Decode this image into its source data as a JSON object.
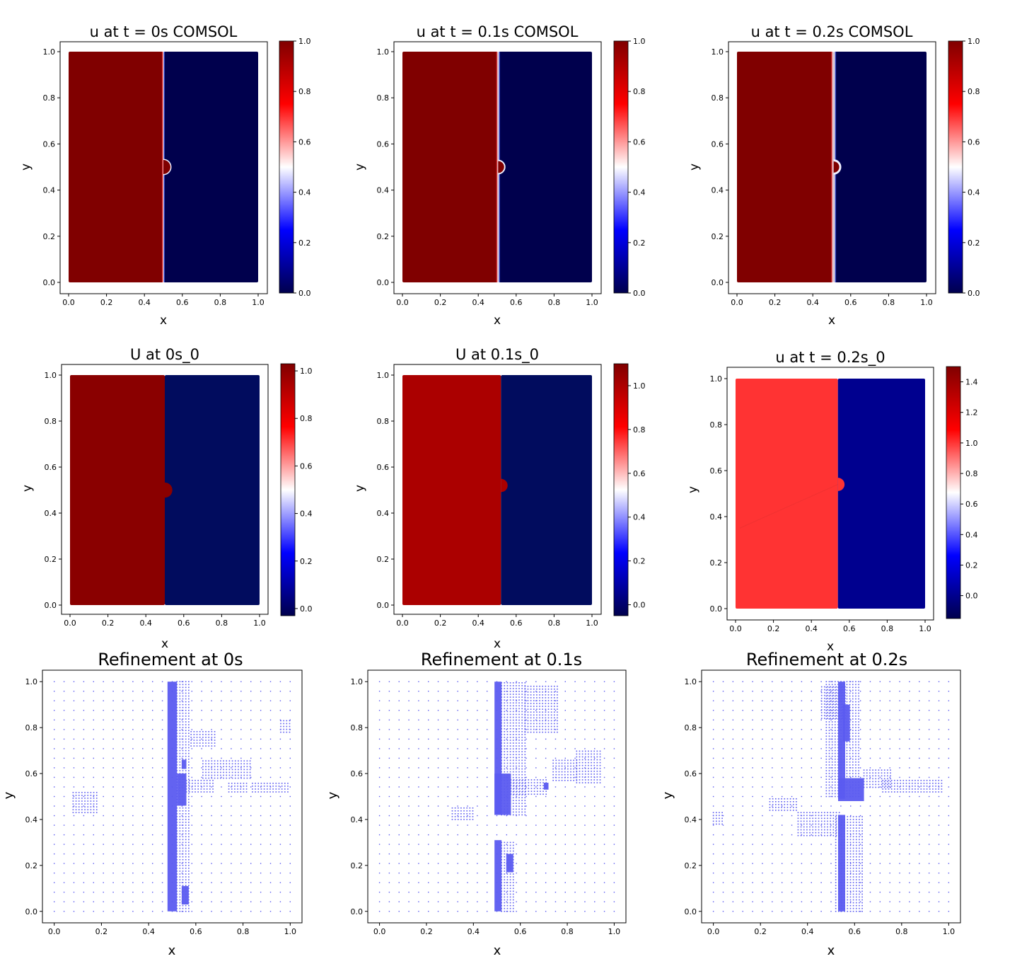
{
  "colors": {
    "cold": "#00004d",
    "hot": "#800000",
    "mid": "#ffffff",
    "nn_cold": "#010c5e",
    "nn_hot_1": "#8a0000",
    "nn_hot_2": "#ab0000",
    "nn_hot_3": "#ff3333",
    "nn_cold_3": "#00008f",
    "refine": "#5b5bf0"
  },
  "chart_data": [
    {
      "type": "heatmap",
      "title": "u at t = 0s COMSOL",
      "xlabel": "x",
      "ylabel": "y",
      "xlim": [
        0,
        1
      ],
      "ylim": [
        0,
        1
      ],
      "xticks": [
        "0.0",
        "0.2",
        "0.4",
        "0.6",
        "0.8",
        "1.0"
      ],
      "yticks": [
        "0.0",
        "0.2",
        "0.4",
        "0.6",
        "0.8",
        "1.0"
      ],
      "interface_x": 0.5,
      "bump_center_y": 0.5,
      "bump_radius": 0.04,
      "transition_width": 0.003,
      "left_value": 1.0,
      "right_value": 0.0,
      "colorbar": {
        "min": 0.0,
        "max": 1.0,
        "ticks": [
          "0.0",
          "0.2",
          "0.4",
          "0.6",
          "0.8",
          "1.0"
        ]
      }
    },
    {
      "type": "heatmap",
      "title": "u at t = 0.1s COMSOL",
      "xlabel": "x",
      "ylabel": "y",
      "xlim": [
        0,
        1
      ],
      "ylim": [
        0,
        1
      ],
      "xticks": [
        "0.0",
        "0.2",
        "0.4",
        "0.6",
        "0.8",
        "1.0"
      ],
      "yticks": [
        "0.0",
        "0.2",
        "0.4",
        "0.6",
        "0.8",
        "1.0"
      ],
      "interface_x": 0.505,
      "bump_center_y": 0.5,
      "bump_radius": 0.035,
      "transition_width": 0.012,
      "left_value": 1.0,
      "right_value": 0.0,
      "colorbar": {
        "min": 0.0,
        "max": 1.0,
        "ticks": [
          "0.0",
          "0.2",
          "0.4",
          "0.6",
          "0.8",
          "1.0"
        ]
      }
    },
    {
      "type": "heatmap",
      "title": "u at t = 0.2s COMSOL",
      "xlabel": "x",
      "ylabel": "y",
      "xlim": [
        0,
        1
      ],
      "ylim": [
        0,
        1
      ],
      "xticks": [
        "0.0",
        "0.2",
        "0.4",
        "0.6",
        "0.8",
        "1.0"
      ],
      "yticks": [
        "0.0",
        "0.2",
        "0.4",
        "0.6",
        "0.8",
        "1.0"
      ],
      "interface_x": 0.51,
      "bump_center_y": 0.5,
      "bump_radius": 0.035,
      "transition_width": 0.018,
      "left_value": 1.0,
      "right_value": 0.0,
      "colorbar": {
        "min": 0.0,
        "max": 1.0,
        "ticks": [
          "0.0",
          "0.2",
          "0.4",
          "0.6",
          "0.8",
          "1.0"
        ]
      }
    },
    {
      "type": "heatmap",
      "title": "U at 0s_0",
      "xlabel": "x",
      "ylabel": "y",
      "xlim": [
        0,
        1
      ],
      "ylim": [
        0,
        1
      ],
      "xticks": [
        "0.0",
        "0.2",
        "0.4",
        "0.6",
        "0.8",
        "1.0"
      ],
      "yticks": [
        "0.0",
        "0.2",
        "0.4",
        "0.6",
        "0.8",
        "1.0"
      ],
      "interface_x": 0.5,
      "bump_center_y": 0.5,
      "bump_radius": 0.04,
      "left_value": 1.0,
      "right_value": 0.0,
      "colorbar": {
        "min": -0.03,
        "max": 1.03,
        "ticks": [
          "0.0",
          "0.2",
          "0.4",
          "0.6",
          "0.8",
          "1.0"
        ]
      }
    },
    {
      "type": "heatmap",
      "title": "U at 0.1s_0",
      "xlabel": "x",
      "ylabel": "y",
      "xlim": [
        0,
        1
      ],
      "ylim": [
        0,
        1
      ],
      "xticks": [
        "0.0",
        "0.2",
        "0.4",
        "0.6",
        "0.8",
        "1.0"
      ],
      "yticks": [
        "0.0",
        "0.2",
        "0.4",
        "0.6",
        "0.8",
        "1.0"
      ],
      "interface_x": 0.52,
      "bump_center_y": 0.52,
      "bump_radius": 0.035,
      "left_value": 1.0,
      "right_value": 0.0,
      "colorbar": {
        "min": -0.05,
        "max": 1.1,
        "ticks": [
          "0.0",
          "0.2",
          "0.4",
          "0.6",
          "0.8",
          "1.0"
        ]
      }
    },
    {
      "type": "heatmap",
      "title": "u at t = 0.2s_0",
      "xlabel": "x",
      "ylabel": "y",
      "xlim": [
        0,
        1
      ],
      "ylim": [
        0,
        1
      ],
      "xticks": [
        "0.0",
        "0.2",
        "0.4",
        "0.6",
        "0.8",
        "1.0"
      ],
      "yticks": [
        "0.0",
        "0.2",
        "0.4",
        "0.6",
        "0.8",
        "1.0"
      ],
      "interface_x": 0.54,
      "bump_center_y": 0.54,
      "bump_radius": 0.035,
      "left_value": 1.0,
      "right_value": 0.0,
      "colorbar": {
        "min": -0.15,
        "max": 1.5,
        "ticks": [
          "0.0",
          "0.2",
          "0.4",
          "0.6",
          "0.8",
          "1.0",
          "1.2",
          "1.4"
        ]
      }
    },
    {
      "type": "scatter",
      "title": "Refinement at 0s",
      "xlabel": "x",
      "ylabel": "y",
      "xlim": [
        -0.05,
        1.05
      ],
      "ylim": [
        -0.05,
        1.05
      ],
      "xticks": [
        "0.0",
        "0.2",
        "0.4",
        "0.6",
        "0.8",
        "1.0"
      ],
      "yticks": [
        "0.0",
        "0.2",
        "0.4",
        "0.6",
        "0.8",
        "1.0"
      ],
      "dense_regions": [
        [
          0.48,
          0.52,
          0,
          1
        ],
        [
          0.52,
          0.56,
          0.46,
          0.6
        ],
        [
          0.54,
          0.56,
          0.62,
          0.66
        ],
        [
          0.54,
          0.57,
          0.03,
          0.11
        ]
      ],
      "medium_regions": [
        [
          0.52,
          0.58,
          0,
          1
        ],
        [
          0.56,
          0.68,
          0.52,
          0.58
        ],
        [
          0.58,
          0.68,
          0.72,
          0.79
        ],
        [
          0.74,
          0.82,
          0.52,
          0.56
        ],
        [
          0.84,
          1.0,
          0.52,
          0.56
        ],
        [
          0.96,
          1.0,
          0.78,
          0.84
        ],
        [
          0.08,
          0.18,
          0.43,
          0.52
        ],
        [
          0.63,
          0.83,
          0.58,
          0.66
        ]
      ]
    },
    {
      "type": "scatter",
      "title": "Refinement at 0.1s",
      "xlabel": "x",
      "ylabel": "y",
      "xlim": [
        -0.05,
        1.05
      ],
      "ylim": [
        -0.05,
        1.05
      ],
      "xticks": [
        "0.0",
        "0.2",
        "0.4",
        "0.6",
        "0.8",
        "1.0"
      ],
      "yticks": [
        "0.0",
        "0.2",
        "0.4",
        "0.6",
        "0.8",
        "1.0"
      ],
      "dense_regions": [
        [
          0.49,
          0.52,
          0.42,
          1
        ],
        [
          0.49,
          0.56,
          0.42,
          0.6
        ],
        [
          0.49,
          0.52,
          0,
          0.31
        ],
        [
          0.54,
          0.57,
          0.17,
          0.25
        ],
        [
          0.7,
          0.72,
          0.53,
          0.56
        ]
      ],
      "medium_regions": [
        [
          0.52,
          0.62,
          0.42,
          1
        ],
        [
          0.56,
          0.72,
          0.51,
          0.58
        ],
        [
          0.52,
          0.58,
          0,
          0.31
        ],
        [
          0.62,
          0.76,
          0.78,
          0.98
        ],
        [
          0.84,
          0.94,
          0.56,
          0.7
        ],
        [
          0.74,
          0.84,
          0.57,
          0.66
        ],
        [
          0.31,
          0.4,
          0.4,
          0.46
        ]
      ]
    },
    {
      "type": "scatter",
      "title": "Refinement at 0.2s",
      "xlabel": "x",
      "ylabel": "y",
      "xlim": [
        -0.05,
        1.05
      ],
      "ylim": [
        -0.05,
        1.05
      ],
      "xticks": [
        "0.0",
        "0.2",
        "0.4",
        "0.6",
        "0.8",
        "1.0"
      ],
      "yticks": [
        "0.0",
        "0.2",
        "0.4",
        "0.6",
        "0.8",
        "1.0"
      ],
      "dense_regions": [
        [
          0.53,
          0.56,
          0.49,
          1
        ],
        [
          0.53,
          0.64,
          0.48,
          0.58
        ],
        [
          0.53,
          0.56,
          0,
          0.42
        ],
        [
          0.55,
          0.58,
          0.74,
          0.9
        ]
      ],
      "medium_regions": [
        [
          0.48,
          0.62,
          0.5,
          1
        ],
        [
          0.46,
          0.56,
          0.84,
          0.98
        ],
        [
          0.64,
          0.76,
          0.54,
          0.62
        ],
        [
          0.52,
          0.64,
          0,
          0.42
        ],
        [
          0.36,
          0.54,
          0.33,
          0.44
        ],
        [
          0.24,
          0.36,
          0.44,
          0.5
        ],
        [
          0.72,
          0.98,
          0.52,
          0.58
        ],
        [
          0.0,
          0.04,
          0.38,
          0.44
        ]
      ]
    }
  ]
}
